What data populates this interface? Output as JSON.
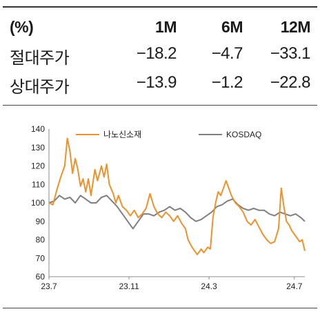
{
  "table": {
    "header": [
      "(%)",
      "1M",
      "6M",
      "12M"
    ],
    "rows": [
      {
        "label": "절대주가",
        "values": [
          "−18.2",
          "−4.7",
          "−33.1"
        ]
      },
      {
        "label": "상대주가",
        "values": [
          "−13.9",
          "−1.2",
          "−22.8"
        ]
      }
    ]
  },
  "chart_data": {
    "type": "line",
    "ylim": [
      60,
      140
    ],
    "yticks": [
      60,
      70,
      80,
      90,
      100,
      110,
      120,
      130,
      140
    ],
    "xticks": [
      "23.7",
      "23.11",
      "24.3",
      "24.7"
    ],
    "legend_position": "top",
    "series": [
      {
        "name": "나노신소재",
        "color": "#f0902a",
        "points": [
          [
            0,
            100
          ],
          [
            0.3,
            99
          ],
          [
            0.6,
            107
          ],
          [
            0.9,
            114
          ],
          [
            1.2,
            120
          ],
          [
            1.4,
            135
          ],
          [
            1.6,
            128
          ],
          [
            1.8,
            116
          ],
          [
            2.0,
            124
          ],
          [
            2.2,
            118
          ],
          [
            2.4,
            109
          ],
          [
            2.6,
            113
          ],
          [
            2.8,
            106
          ],
          [
            3.0,
            113
          ],
          [
            3.2,
            104
          ],
          [
            3.5,
            118
          ],
          [
            3.7,
            112
          ],
          [
            4.0,
            120
          ],
          [
            4.2,
            114
          ],
          [
            4.4,
            121
          ],
          [
            4.6,
            110
          ],
          [
            4.9,
            105
          ],
          [
            5.1,
            100
          ],
          [
            5.3,
            104
          ],
          [
            5.6,
            98
          ],
          [
            5.9,
            96
          ],
          [
            6.2,
            93
          ],
          [
            6.5,
            96
          ],
          [
            6.8,
            92
          ],
          [
            7.1,
            94
          ],
          [
            7.4,
            97
          ],
          [
            7.7,
            105
          ],
          [
            8.0,
            98
          ],
          [
            8.3,
            94
          ],
          [
            8.6,
            92
          ],
          [
            8.9,
            95
          ],
          [
            9.2,
            93
          ],
          [
            9.5,
            90
          ],
          [
            9.8,
            93
          ],
          [
            10.1,
            89
          ],
          [
            10.4,
            86
          ],
          [
            10.6,
            80
          ],
          [
            10.9,
            76
          ],
          [
            11.1,
            74
          ],
          [
            11.3,
            72
          ],
          [
            11.6,
            75
          ],
          [
            11.8,
            73
          ],
          [
            12.1,
            76
          ],
          [
            12.3,
            75
          ],
          [
            12.5,
            92
          ],
          [
            12.7,
            100
          ],
          [
            12.9,
            106
          ],
          [
            13.1,
            104
          ],
          [
            13.3,
            108
          ],
          [
            13.5,
            112
          ],
          [
            13.7,
            108
          ],
          [
            13.9,
            104
          ],
          [
            14.2,
            100
          ],
          [
            14.5,
            98
          ],
          [
            14.8,
            95
          ],
          [
            15.1,
            90
          ],
          [
            15.4,
            88
          ],
          [
            15.7,
            91
          ],
          [
            16.0,
            87
          ],
          [
            16.3,
            83
          ],
          [
            16.6,
            80
          ],
          [
            16.9,
            78
          ],
          [
            17.2,
            79
          ],
          [
            17.5,
            86
          ],
          [
            17.7,
            108
          ],
          [
            17.9,
            98
          ],
          [
            18.1,
            90
          ],
          [
            18.3,
            88
          ],
          [
            18.5,
            85
          ],
          [
            18.7,
            83
          ],
          [
            18.9,
            81
          ],
          [
            19.1,
            79
          ],
          [
            19.3,
            80
          ],
          [
            19.5,
            74
          ]
        ]
      },
      {
        "name": "KOSDAQ",
        "color": "#7f7f7f",
        "points": [
          [
            0,
            100
          ],
          [
            0.4,
            101
          ],
          [
            0.8,
            104
          ],
          [
            1.2,
            102
          ],
          [
            1.6,
            103
          ],
          [
            2.0,
            100
          ],
          [
            2.4,
            104
          ],
          [
            2.8,
            102
          ],
          [
            3.2,
            100
          ],
          [
            3.6,
            100
          ],
          [
            4.0,
            103
          ],
          [
            4.4,
            104
          ],
          [
            4.8,
            101
          ],
          [
            5.2,
            98
          ],
          [
            5.6,
            94
          ],
          [
            6.0,
            90
          ],
          [
            6.4,
            86
          ],
          [
            6.8,
            90
          ],
          [
            7.2,
            94
          ],
          [
            7.6,
            94
          ],
          [
            8.0,
            93
          ],
          [
            8.4,
            95
          ],
          [
            8.8,
            96
          ],
          [
            9.2,
            98
          ],
          [
            9.6,
            96
          ],
          [
            10.0,
            97
          ],
          [
            10.4,
            95
          ],
          [
            10.8,
            92
          ],
          [
            11.2,
            90
          ],
          [
            11.6,
            91
          ],
          [
            12.0,
            93
          ],
          [
            12.4,
            95
          ],
          [
            12.8,
            98
          ],
          [
            13.2,
            99
          ],
          [
            13.6,
            101
          ],
          [
            14.0,
            102
          ],
          [
            14.4,
            99
          ],
          [
            14.8,
            97
          ],
          [
            15.2,
            96
          ],
          [
            15.6,
            97
          ],
          [
            16.0,
            96
          ],
          [
            16.4,
            96
          ],
          [
            16.8,
            94
          ],
          [
            17.2,
            93
          ],
          [
            17.6,
            95
          ],
          [
            18.0,
            94
          ],
          [
            18.4,
            93
          ],
          [
            18.8,
            94
          ],
          [
            19.2,
            92
          ],
          [
            19.5,
            90
          ]
        ]
      }
    ]
  }
}
